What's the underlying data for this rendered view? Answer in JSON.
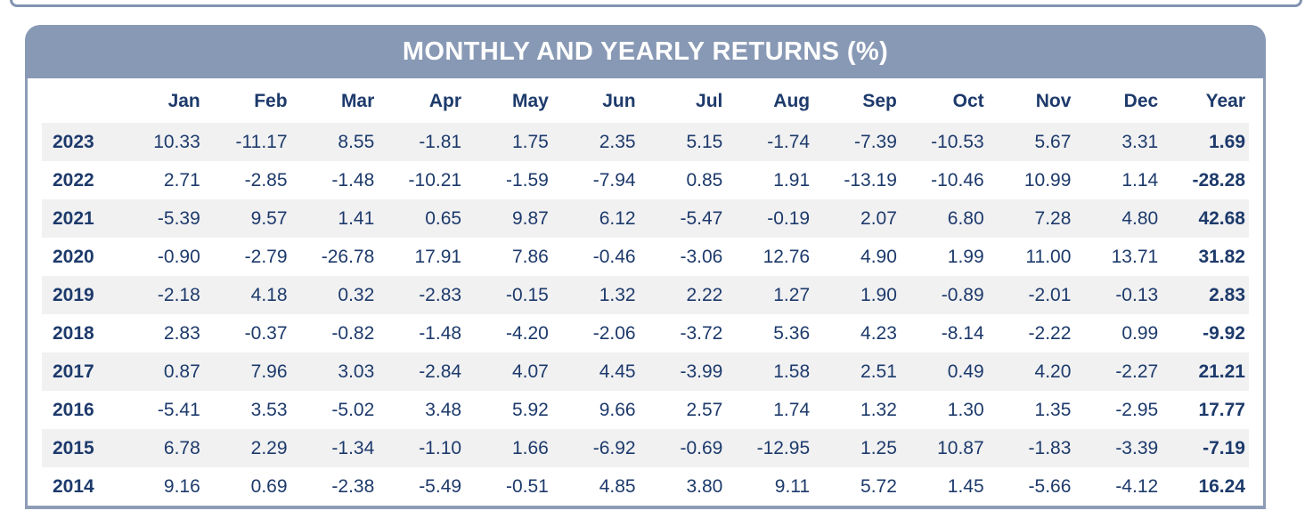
{
  "panel": {
    "title": "MONTHLY AND YEARLY RETURNS (%)"
  },
  "table": {
    "year_column_header": "",
    "month_headers": [
      "Jan",
      "Feb",
      "Mar",
      "Apr",
      "May",
      "Jun",
      "Jul",
      "Aug",
      "Sep",
      "Oct",
      "Nov",
      "Dec"
    ],
    "year_total_header": "Year",
    "rows": [
      {
        "year": "2023",
        "months": [
          "10.33",
          "-11.17",
          "8.55",
          "-1.81",
          "1.75",
          "2.35",
          "5.15",
          "-1.74",
          "-7.39",
          "-10.53",
          "5.67",
          "3.31"
        ],
        "year_total": "1.69"
      },
      {
        "year": "2022",
        "months": [
          "2.71",
          "-2.85",
          "-1.48",
          "-10.21",
          "-1.59",
          "-7.94",
          "0.85",
          "1.91",
          "-13.19",
          "-10.46",
          "10.99",
          "1.14"
        ],
        "year_total": "-28.28"
      },
      {
        "year": "2021",
        "months": [
          "-5.39",
          "9.57",
          "1.41",
          "0.65",
          "9.87",
          "6.12",
          "-5.47",
          "-0.19",
          "2.07",
          "6.80",
          "7.28",
          "4.80"
        ],
        "year_total": "42.68"
      },
      {
        "year": "2020",
        "months": [
          "-0.90",
          "-2.79",
          "-26.78",
          "17.91",
          "7.86",
          "-0.46",
          "-3.06",
          "12.76",
          "4.90",
          "1.99",
          "11.00",
          "13.71"
        ],
        "year_total": "31.82"
      },
      {
        "year": "2019",
        "months": [
          "-2.18",
          "4.18",
          "0.32",
          "-2.83",
          "-0.15",
          "1.32",
          "2.22",
          "1.27",
          "1.90",
          "-0.89",
          "-2.01",
          "-0.13"
        ],
        "year_total": "2.83"
      },
      {
        "year": "2018",
        "months": [
          "2.83",
          "-0.37",
          "-0.82",
          "-1.48",
          "-4.20",
          "-2.06",
          "-3.72",
          "5.36",
          "4.23",
          "-8.14",
          "-2.22",
          "0.99"
        ],
        "year_total": "-9.92"
      },
      {
        "year": "2017",
        "months": [
          "0.87",
          "7.96",
          "3.03",
          "-2.84",
          "4.07",
          "4.45",
          "-3.99",
          "1.58",
          "2.51",
          "0.49",
          "4.20",
          "-2.27"
        ],
        "year_total": "21.21"
      },
      {
        "year": "2016",
        "months": [
          "-5.41",
          "3.53",
          "-5.02",
          "3.48",
          "5.92",
          "9.66",
          "2.57",
          "1.74",
          "1.32",
          "1.30",
          "1.35",
          "-2.95"
        ],
        "year_total": "17.77"
      },
      {
        "year": "2015",
        "months": [
          "6.78",
          "2.29",
          "-1.34",
          "-1.10",
          "1.66",
          "-6.92",
          "-0.69",
          "-12.95",
          "1.25",
          "10.87",
          "-1.83",
          "-3.39"
        ],
        "year_total": "-7.19"
      },
      {
        "year": "2014",
        "months": [
          "9.16",
          "0.69",
          "-2.38",
          "-5.49",
          "-0.51",
          "4.85",
          "3.80",
          "9.11",
          "5.72",
          "1.45",
          "-5.66",
          "-4.12"
        ],
        "year_total": "16.24"
      }
    ]
  },
  "chart_data": {
    "type": "table",
    "title": "MONTHLY AND YEARLY RETURNS (%)",
    "columns": [
      "Year",
      "Jan",
      "Feb",
      "Mar",
      "Apr",
      "May",
      "Jun",
      "Jul",
      "Aug",
      "Sep",
      "Oct",
      "Nov",
      "Dec",
      "Year Total"
    ],
    "rows": [
      {
        "year": 2023,
        "values": [
          10.33,
          -11.17,
          8.55,
          -1.81,
          1.75,
          2.35,
          5.15,
          -1.74,
          -7.39,
          -10.53,
          5.67,
          3.31
        ],
        "year_total": 1.69
      },
      {
        "year": 2022,
        "values": [
          2.71,
          -2.85,
          -1.48,
          -10.21,
          -1.59,
          -7.94,
          0.85,
          1.91,
          -13.19,
          -10.46,
          10.99,
          1.14
        ],
        "year_total": -28.28
      },
      {
        "year": 2021,
        "values": [
          -5.39,
          9.57,
          1.41,
          0.65,
          9.87,
          6.12,
          -5.47,
          -0.19,
          2.07,
          6.8,
          7.28,
          4.8
        ],
        "year_total": 42.68
      },
      {
        "year": 2020,
        "values": [
          -0.9,
          -2.79,
          -26.78,
          17.91,
          7.86,
          -0.46,
          -3.06,
          12.76,
          4.9,
          1.99,
          11.0,
          13.71
        ],
        "year_total": 31.82
      },
      {
        "year": 2019,
        "values": [
          -2.18,
          4.18,
          0.32,
          -2.83,
          -0.15,
          1.32,
          2.22,
          1.27,
          1.9,
          -0.89,
          -2.01,
          -0.13
        ],
        "year_total": 2.83
      },
      {
        "year": 2018,
        "values": [
          2.83,
          -0.37,
          -0.82,
          -1.48,
          -4.2,
          -2.06,
          -3.72,
          5.36,
          4.23,
          -8.14,
          -2.22,
          0.99
        ],
        "year_total": -9.92
      },
      {
        "year": 2017,
        "values": [
          0.87,
          7.96,
          3.03,
          -2.84,
          4.07,
          4.45,
          -3.99,
          1.58,
          2.51,
          0.49,
          4.2,
          -2.27
        ],
        "year_total": 21.21
      },
      {
        "year": 2016,
        "values": [
          -5.41,
          3.53,
          -5.02,
          3.48,
          5.92,
          9.66,
          2.57,
          1.74,
          1.32,
          1.3,
          1.35,
          -2.95
        ],
        "year_total": 17.77
      },
      {
        "year": 2015,
        "values": [
          6.78,
          2.29,
          -1.34,
          -1.1,
          1.66,
          -6.92,
          -0.69,
          -12.95,
          1.25,
          10.87,
          -1.83,
          -3.39
        ],
        "year_total": -7.19
      },
      {
        "year": 2014,
        "values": [
          9.16,
          0.69,
          -2.38,
          -5.49,
          -0.51,
          4.85,
          3.8,
          9.11,
          5.72,
          1.45,
          -5.66,
          -4.12
        ],
        "year_total": 16.24
      }
    ],
    "layout_hints": {
      "striped_rows": true,
      "first_stripe_row": "2023",
      "year_total_bold": true
    }
  },
  "colors": {
    "header_bar": "#8899b5",
    "panel_border": "#8e9cb6",
    "top_strip_border": "#8193af",
    "text_navy": "#1d3a6b",
    "row_stripe": "#f1f1f2",
    "title_text": "#ffffff",
    "background": "#ffffff"
  }
}
